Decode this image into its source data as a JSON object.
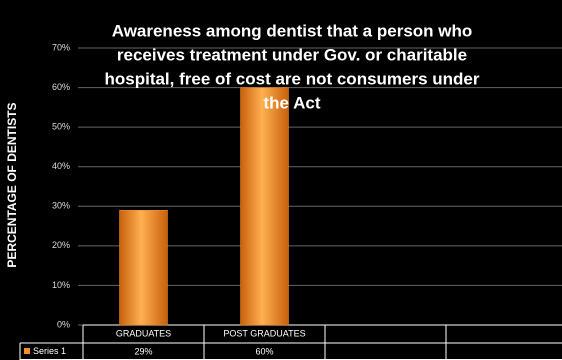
{
  "chart_data": {
    "type": "bar",
    "title": [
      "Awareness among dentist that a person who",
      "receives  treatment under Gov. or charitable",
      "hospital, free of cost are not consumers under",
      "the Act"
    ],
    "y_label": "PERCENTAGE OF DENTISTS",
    "categories": [
      "GRADUATES",
      "POST GRADUATES"
    ],
    "series": [
      {
        "name": "Series 1",
        "color": "#f0902a",
        "values": [
          29,
          60
        ],
        "value_labels": [
          "29%",
          "60%"
        ]
      }
    ],
    "ylim": [
      0,
      70
    ],
    "yticks": [
      {
        "value": 0,
        "label": "0%"
      },
      {
        "value": 10,
        "label": "10%"
      },
      {
        "value": 20,
        "label": "20%"
      },
      {
        "value": 30,
        "label": "30%"
      },
      {
        "value": 40,
        "label": "40%"
      },
      {
        "value": 50,
        "label": "50%"
      },
      {
        "value": 60,
        "label": "60%"
      },
      {
        "value": 70,
        "label": "70%"
      }
    ],
    "grid": true
  }
}
